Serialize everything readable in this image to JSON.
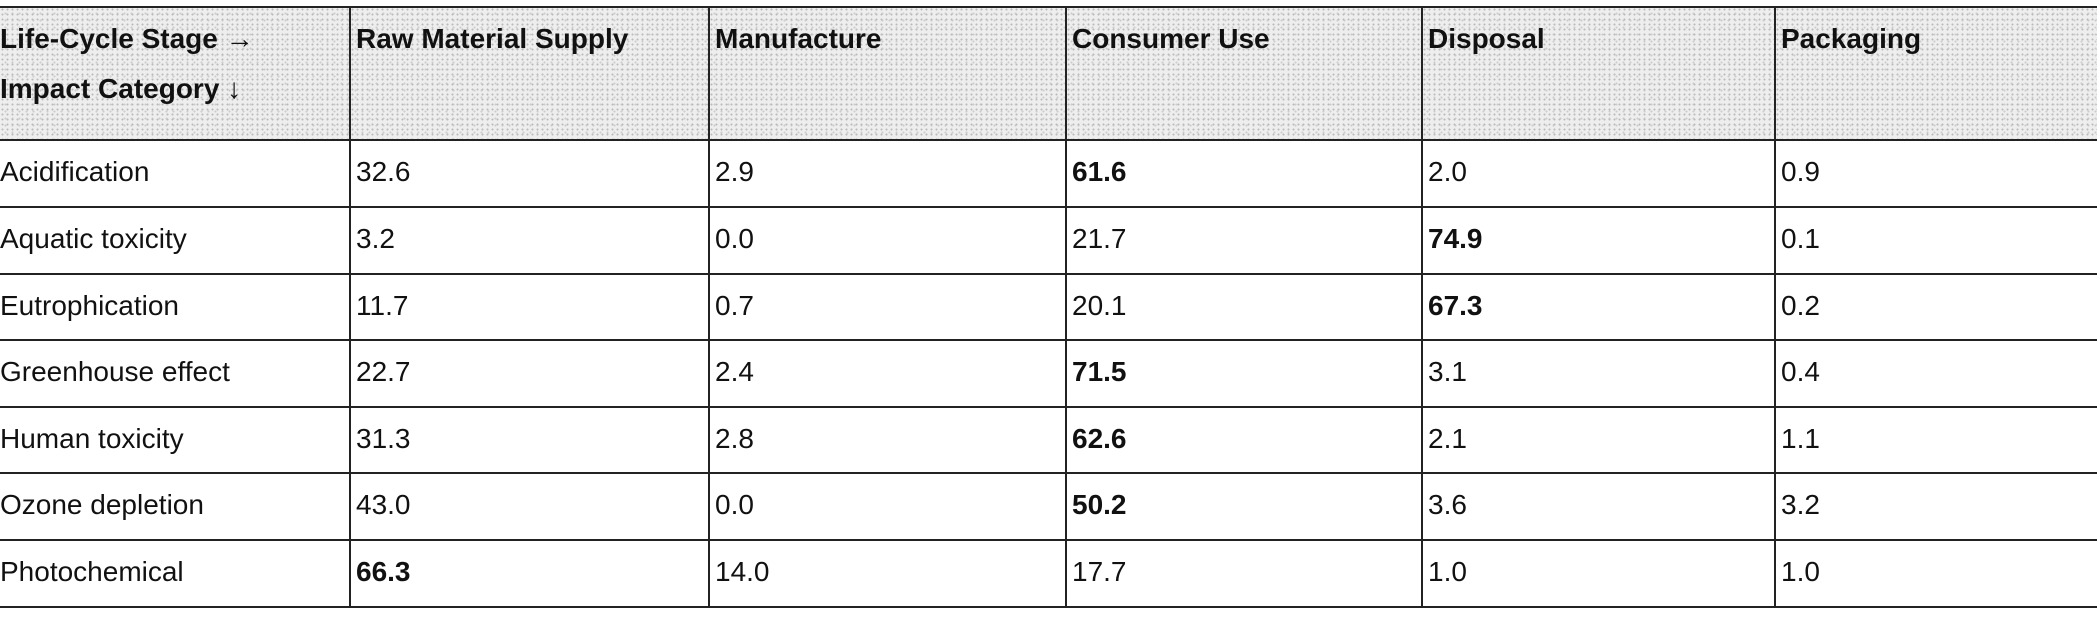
{
  "header": {
    "stage_label": "Life-Cycle Stage →",
    "impact_label": "Impact Category ↓",
    "columns": [
      "Raw Material Supply",
      "Manufacture",
      "Consumer Use",
      "Disposal",
      "Packaging"
    ]
  },
  "table": {
    "rows": [
      {
        "label": "Acidification",
        "values": [
          "32.6",
          "2.9",
          "61.6",
          "2.0",
          "0.9"
        ],
        "bold": 2
      },
      {
        "label": "Aquatic toxicity",
        "values": [
          "3.2",
          "0.0",
          "21.7",
          "74.9",
          "0.1"
        ],
        "bold": 3
      },
      {
        "label": "Eutrophication",
        "values": [
          "11.7",
          "0.7",
          "20.1",
          "67.3",
          "0.2"
        ],
        "bold": 3
      },
      {
        "label": "Greenhouse effect",
        "values": [
          "22.7",
          "2.4",
          "71.5",
          "3.1",
          "0.4"
        ],
        "bold": 2
      },
      {
        "label": "Human toxicity",
        "values": [
          "31.3",
          "2.8",
          "62.6",
          "2.1",
          "1.1"
        ],
        "bold": 2
      },
      {
        "label": "Ozone depletion",
        "values": [
          "43.0",
          "0.0",
          "50.2",
          "3.6",
          "3.2"
        ],
        "bold": 2
      },
      {
        "label": "Photochemical",
        "values": [
          "66.3",
          "14.0",
          "17.7",
          "1.0",
          "1.0"
        ],
        "bold": 0
      }
    ]
  }
}
